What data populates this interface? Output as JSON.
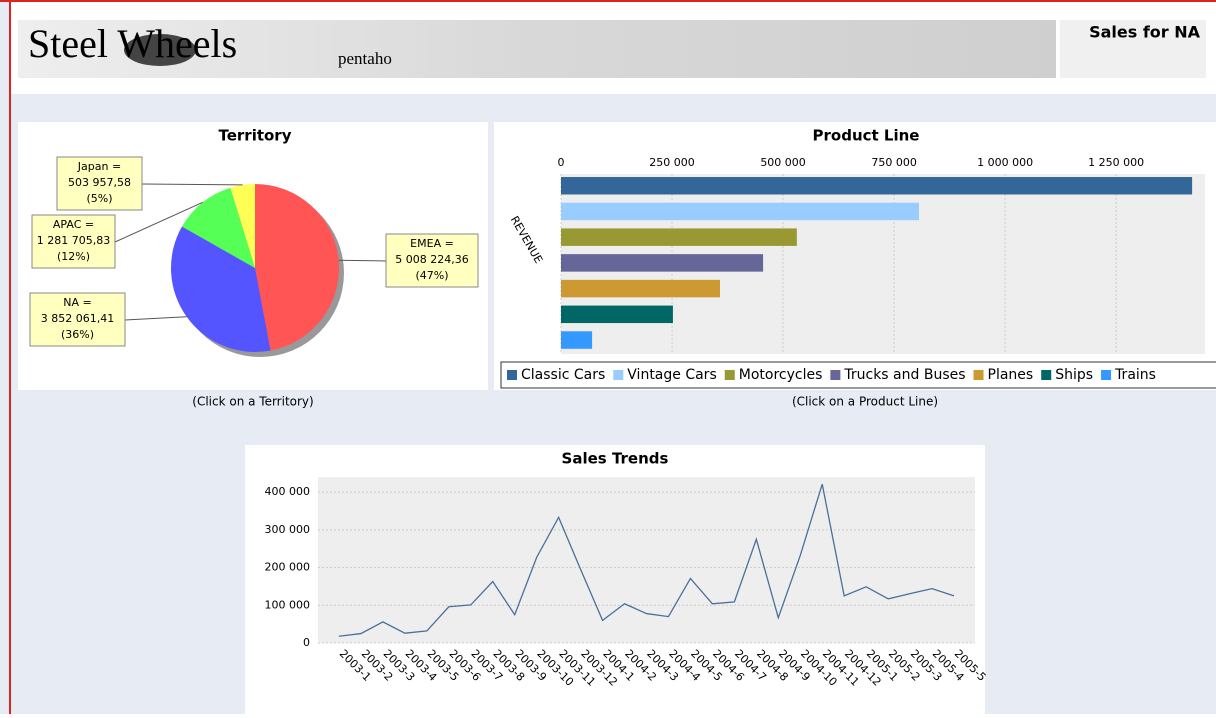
{
  "header": {
    "logo": "Steel Wheels",
    "brand": "pentaho",
    "title": "Sales for NA"
  },
  "notes": {
    "territory": "(Click on a Territory)",
    "product_line": "(Click on a Product Line)"
  },
  "chart_data": [
    {
      "type": "pie",
      "title": "Territory",
      "categories": [
        "EMEA =",
        "NA =",
        "APAC =",
        "Japan ="
      ],
      "values": [
        5008224.36,
        3852061.41,
        1281705.83,
        503957.58
      ],
      "value_labels": [
        "5 008 224,36",
        "3 852 061,41",
        "1 281 705,83",
        "503 957,58"
      ],
      "percent_labels": [
        "(47%)",
        "(36%)",
        "(12%)",
        "(5%)"
      ],
      "colors": [
        "#ff5555",
        "#5555ff",
        "#55ff55",
        "#ffff55"
      ]
    },
    {
      "type": "hbar",
      "title": "Product Line",
      "ylabel": "REVENUE",
      "categories": [
        "Classic Cars",
        "Vintage Cars",
        "Motorcycles",
        "Trucks and Buses",
        "Planes",
        "Ships",
        "Trains"
      ],
      "values": [
        1421000,
        806000,
        531000,
        455000,
        358000,
        252000,
        70000
      ],
      "colors": [
        "#336699",
        "#99ccff",
        "#999933",
        "#666699",
        "#cc9933",
        "#006666",
        "#3399ff"
      ],
      "xlim": [
        0,
        1450000
      ],
      "xticks": [
        0,
        {
          "value": 250000,
          "label": "250 000"
        },
        {
          "value": 500000,
          "label": "500 000"
        },
        {
          "value": 750000,
          "label": "750 000"
        },
        {
          "value": 1000000,
          "label": "1 000 000"
        },
        {
          "value": 1250000,
          "label": "1 250 000"
        }
      ],
      "grid": true
    },
    {
      "type": "line",
      "title": "Sales Trends",
      "categories": [
        "2003-1",
        "2003-2",
        "2003-3",
        "2003-4",
        "2003-5",
        "2003-6",
        "2003-7",
        "2003-8",
        "2003-9",
        "2003-10",
        "2003-11",
        "2003-12",
        "2004-1",
        "2004-2",
        "2004-3",
        "2004-4",
        "2004-5",
        "2004-6",
        "2004-7",
        "2004-8",
        "2004-9",
        "2004-10",
        "2004-11",
        "2004-12",
        "2005-1",
        "2005-2",
        "2005-3",
        "2005-4",
        "2005-5"
      ],
      "values": [
        18000,
        25000,
        56000,
        26000,
        32000,
        96000,
        101000,
        163000,
        75000,
        227000,
        333000,
        195000,
        60000,
        104000,
        78000,
        70000,
        171000,
        104000,
        109000,
        275000,
        67000,
        232000,
        421000,
        125000,
        149000,
        117000,
        131000,
        144000,
        125000
      ],
      "color": "#4a6f9a",
      "ylim": [
        0,
        440000
      ],
      "yticks": [
        0,
        {
          "value": 100000,
          "label": "100 000"
        },
        {
          "value": 200000,
          "label": "200 000"
        },
        {
          "value": 300000,
          "label": "300 000"
        },
        {
          "value": 400000,
          "label": "400 000"
        }
      ],
      "grid": true
    }
  ]
}
